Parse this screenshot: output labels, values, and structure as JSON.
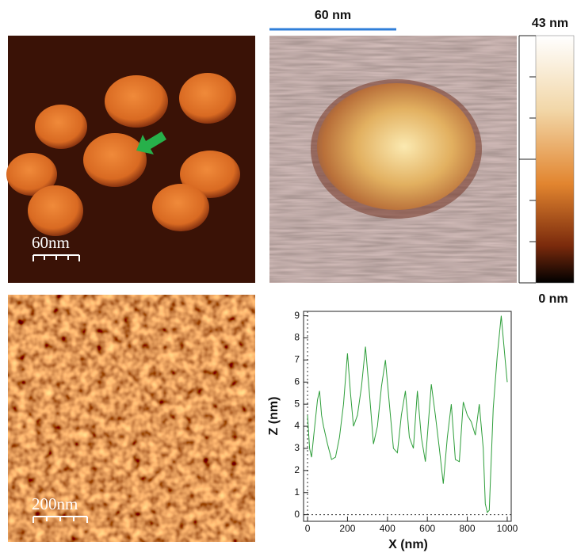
{
  "panels": {
    "top_left_scale": "60nm",
    "top_right_scale": "60 nm",
    "bottom_left_scale": "200nm"
  },
  "colorbar": {
    "max_label": "43 nm",
    "min_label": "0 nm"
  },
  "chart_data": {
    "type": "line",
    "x_label": "X (nm)",
    "y_label": "Z (nm)",
    "x": [
      0,
      10,
      20,
      30,
      50,
      60,
      70,
      80,
      100,
      120,
      140,
      160,
      180,
      200,
      215,
      230,
      250,
      270,
      290,
      310,
      330,
      350,
      370,
      390,
      410,
      430,
      450,
      470,
      490,
      510,
      530,
      550,
      570,
      590,
      620,
      640,
      660,
      680,
      700,
      720,
      740,
      760,
      780,
      800,
      820,
      840,
      860,
      880,
      890,
      900,
      910,
      930,
      950,
      970,
      990,
      1000
    ],
    "values": [
      4.5,
      3.0,
      2.6,
      3.5,
      5.2,
      5.6,
      4.5,
      4.0,
      3.2,
      2.5,
      2.6,
      3.5,
      5.0,
      7.3,
      5.5,
      4.0,
      4.5,
      5.8,
      7.6,
      5.5,
      3.2,
      4.0,
      5.8,
      7.0,
      5.0,
      3.0,
      2.8,
      4.5,
      5.6,
      3.5,
      3.0,
      5.6,
      3.5,
      2.4,
      5.9,
      4.5,
      3.0,
      1.4,
      3.5,
      5.0,
      2.5,
      2.4,
      5.1,
      4.5,
      4.2,
      3.6,
      5.0,
      3.0,
      0.5,
      0.1,
      0.2,
      4.8,
      7.2,
      9.0,
      7.0,
      6.0
    ],
    "color": "#2e9e3a",
    "xlim": [
      -20,
      1020
    ],
    "ylim": [
      -0.3,
      9.2
    ],
    "xticks": [
      0,
      200,
      400,
      600,
      800,
      1000
    ],
    "yticks": [
      0,
      1,
      2,
      3,
      4,
      5,
      6,
      7,
      8,
      9
    ]
  }
}
